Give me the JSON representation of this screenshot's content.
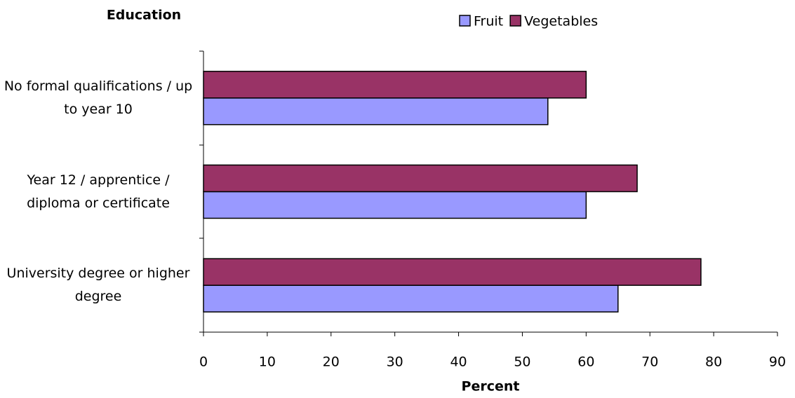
{
  "chart_data": {
    "type": "bar",
    "orientation": "horizontal",
    "y_label": "Education",
    "x_label": "Percent",
    "categories": [
      "No formal qualifications / up to year 10",
      "Year 12 / apprentice / diploma or certificate",
      "University degree or higher degree"
    ],
    "series": [
      {
        "name": "Fruit",
        "color": "#9999ff",
        "values": [
          54,
          60,
          65
        ]
      },
      {
        "name": "Vegetables",
        "color": "#993366",
        "values": [
          60,
          68,
          78
        ]
      }
    ],
    "xlim": [
      0,
      90
    ],
    "xticks": [
      0,
      10,
      20,
      30,
      40,
      50,
      60,
      70,
      80,
      90
    ],
    "grid": false,
    "legend": "top"
  }
}
